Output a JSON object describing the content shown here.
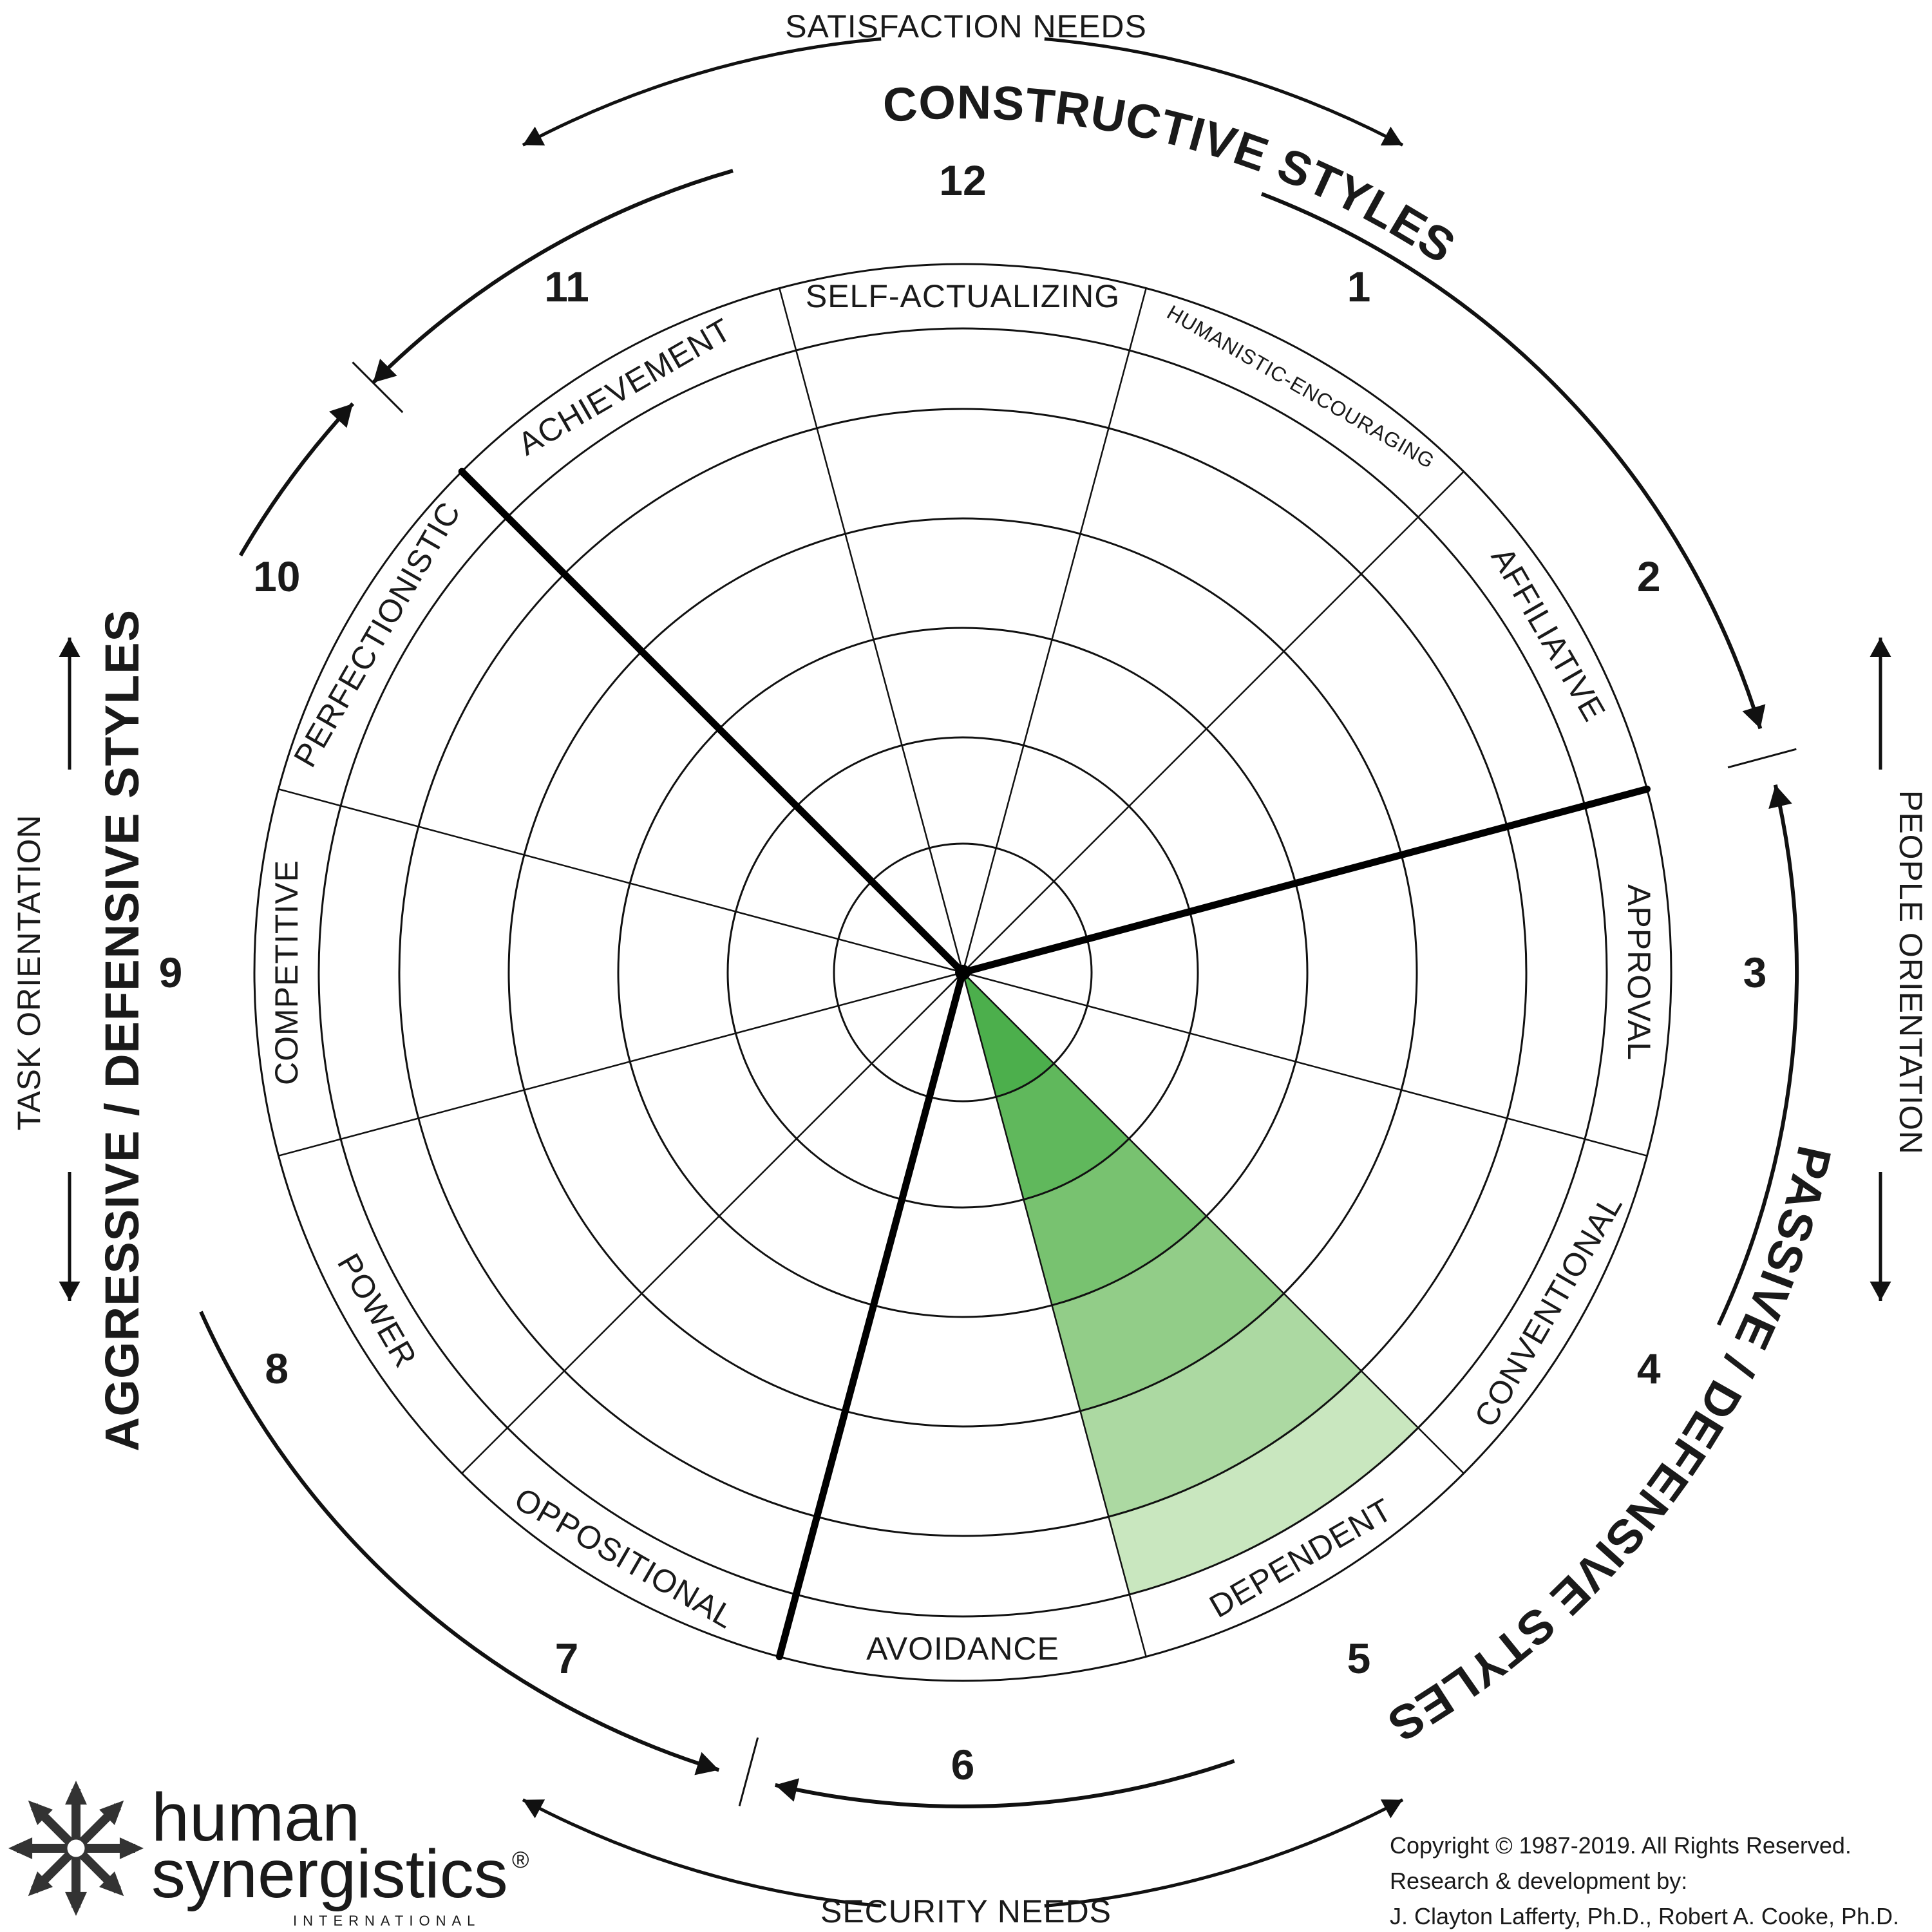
{
  "styles": [
    {
      "number": "1",
      "label": "HUMANISTIC-ENCOURAGING"
    },
    {
      "number": "2",
      "label": "AFFILIATIVE"
    },
    {
      "number": "3",
      "label": "APPROVAL"
    },
    {
      "number": "4",
      "label": "CONVENTIONAL"
    },
    {
      "number": "5",
      "label": "DEPENDENT"
    },
    {
      "number": "6",
      "label": "AVOIDANCE"
    },
    {
      "number": "7",
      "label": "OPPOSITIONAL"
    },
    {
      "number": "8",
      "label": "POWER"
    },
    {
      "number": "9",
      "label": "COMPETITIVE"
    },
    {
      "number": "10",
      "label": "PERFECTIONISTIC"
    },
    {
      "number": "11",
      "label": "ACHIEVEMENT"
    },
    {
      "number": "12",
      "label": "SELF-ACTUALIZING"
    }
  ],
  "clusters": {
    "constructive": "CONSTRUCTIVE STYLES",
    "passive": "PASSIVE / DEFENSIVE STYLES",
    "aggressive": "AGGRESSIVE / DEFENSIVE STYLES"
  },
  "needs": {
    "satisfaction": "SATISFACTION NEEDS",
    "security": "SECURITY NEEDS",
    "people": "PEOPLE ORIENTATION",
    "task": "TASK ORIENTATION"
  },
  "highlight": {
    "style_number": "5",
    "levels": 6,
    "colors": [
      "#4caf4c",
      "#60b85c",
      "#78c270",
      "#92cd88",
      "#acd9a2",
      "#c9e7bf"
    ]
  },
  "logo": {
    "line1": "human",
    "line2": "synergistics",
    "registered": "®",
    "tagline": "INTERNATIONAL"
  },
  "copyright": {
    "line1": "Copyright © 1987-2019. All Rights Reserved.",
    "line2": "Research & development by:",
    "line3": "J. Clayton Lafferty, Ph.D., Robert A. Cooke, Ph.D."
  }
}
